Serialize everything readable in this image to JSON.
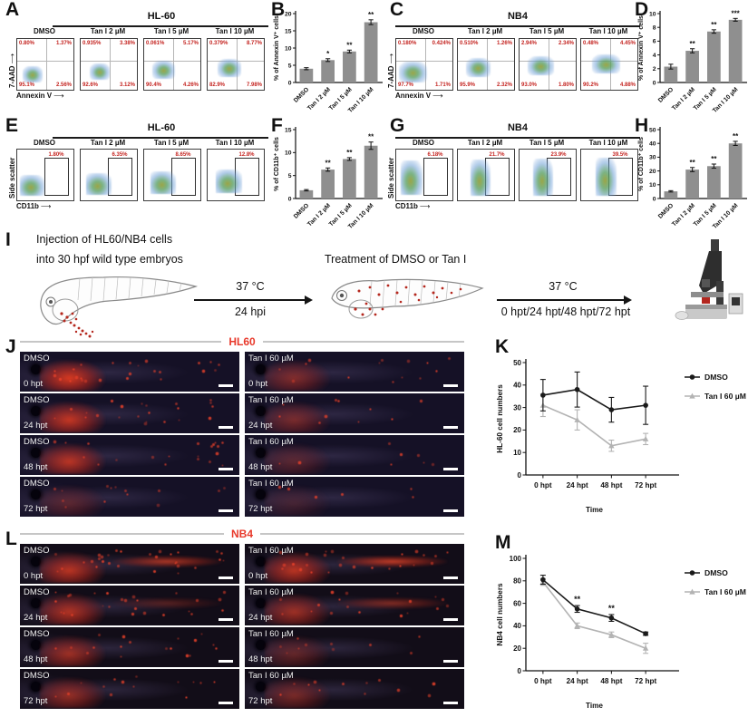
{
  "icons": {
    "arrow_right": "⟶",
    "arrow_up": "↑"
  },
  "colors": {
    "bar": "#8f8f8f",
    "error": "#1a1a1a",
    "red_label": "#c42420",
    "title_red": "#e8392b",
    "dmso_line": "#1a1a1a",
    "tan_line": "#b3b3b3"
  },
  "figure": {
    "panels": {
      "A": {
        "label": "A",
        "title": "HL-60",
        "y_axis": "7-AAD",
        "x_axis": "Annexin V",
        "plots": [
          {
            "condition": "DMSO",
            "ul": "0.80%",
            "ur": "1.37%",
            "ll": "95.1%",
            "lr": "2.56%"
          },
          {
            "condition": "Tan I 2 µM",
            "ul": "0.935%",
            "ur": "3.38%",
            "ll": "92.6%",
            "lr": "3.12%"
          },
          {
            "condition": "Tan I 5 µM",
            "ul": "0.061%",
            "ur": "5.17%",
            "ll": "90.4%",
            "lr": "4.26%"
          },
          {
            "condition": "Tan I 10 µM",
            "ul": "0.379%",
            "ur": "8.77%",
            "ll": "82.9%",
            "lr": "7.98%"
          }
        ]
      },
      "B": {
        "label": "B"
      },
      "C": {
        "label": "C",
        "title": "NB4",
        "y_axis": "7-AAD",
        "x_axis": "Annexin V",
        "plots": [
          {
            "condition": "DMSO",
            "ul": "0.180%",
            "ur": "0.424%",
            "ll": "97.7%",
            "lr": "1.71%"
          },
          {
            "condition": "Tan I 2 µM",
            "ul": "0.510%",
            "ur": "1.26%",
            "ll": "95.9%",
            "lr": "2.32%"
          },
          {
            "condition": "Tan I 5 µM",
            "ul": "2.94%",
            "ur": "2.34%",
            "ll": "93.0%",
            "lr": "1.80%"
          },
          {
            "condition": "Tan I 10 µM",
            "ul": "0.48%",
            "ur": "4.45%",
            "ll": "90.2%",
            "lr": "4.88%"
          }
        ]
      },
      "D": {
        "label": "D"
      },
      "E": {
        "label": "E",
        "title": "HL-60",
        "y_axis": "Side scatter",
        "x_axis": "CD11b",
        "plots": [
          {
            "condition": "DMSO",
            "gate": "1.80%"
          },
          {
            "condition": "Tan I 2 µM",
            "gate": "6.35%"
          },
          {
            "condition": "Tan I 5 µM",
            "gate": "8.65%"
          },
          {
            "condition": "Tan I 10 µM",
            "gate": "12.8%"
          }
        ]
      },
      "F": {
        "label": "F"
      },
      "G": {
        "label": "G",
        "title": "NB4",
        "y_axis": "Side scatter",
        "x_axis": "CD11b",
        "plots": [
          {
            "condition": "DMSO",
            "gate": "6.18%"
          },
          {
            "condition": "Tan I 2 µM",
            "gate": "21.7%"
          },
          {
            "condition": "Tan I 5 µM",
            "gate": "23.9%"
          },
          {
            "condition": "Tan I 10 µM",
            "gate": "39.5%"
          }
        ]
      },
      "H": {
        "label": "H"
      },
      "I": {
        "label": "I",
        "line1": "Injection of HL60/NB4 cells",
        "line2": "into 30 hpf wild type embryos",
        "arrow1_top": "37 °C",
        "arrow1_bottom": "24 hpi",
        "treatment": "Treatment of DMSO or Tan I",
        "arrow2_top": "37 °C",
        "arrow2_bottom": "0 hpt/24 hpt/48 hpt/72 hpt"
      },
      "J": {
        "label": "J",
        "title": "HL60",
        "rows": [
          {
            "left": "DMSO",
            "right": "Tan I 60 µM",
            "time": "0 hpt"
          },
          {
            "left": "DMSO",
            "right": "Tan I 60 µM",
            "time": "24 hpt"
          },
          {
            "left": "DMSO",
            "right": "Tan I 60 µM",
            "time": "48 hpt"
          },
          {
            "left": "DMSO",
            "right": "Tan I 60 µM",
            "time": "72 hpt"
          }
        ]
      },
      "K": {
        "label": "K"
      },
      "L": {
        "label": "L",
        "title": "NB4",
        "rows": [
          {
            "left": "DMSO",
            "right": "Tan I 60 µM",
            "time": "0 hpt"
          },
          {
            "left": "DMSO",
            "right": "Tan I 60 µM",
            "time": "24 hpt"
          },
          {
            "left": "DMSO",
            "right": "Tan I 60 µM",
            "time": "48 hpt"
          },
          {
            "left": "DMSO",
            "right": "Tan I 60 µM",
            "time": "72 hpt"
          }
        ]
      },
      "M": {
        "label": "M"
      }
    }
  },
  "chart_data": [
    {
      "id": "B",
      "type": "bar",
      "title": "",
      "categories": [
        "DMSO",
        "Tan I 2 µM",
        "Tan I 5 µM",
        "Tan I 10 µM"
      ],
      "values": [
        4.0,
        6.5,
        9.0,
        17.5
      ],
      "errors": [
        0.3,
        0.4,
        0.4,
        0.7
      ],
      "significance": [
        "",
        "*",
        "**",
        "**"
      ],
      "xlabel": "",
      "ylabel": "% of Annexin V⁺ cells",
      "ylim": [
        0,
        20
      ],
      "yticks": [
        0,
        5,
        10,
        15,
        20
      ],
      "grid": false
    },
    {
      "id": "D",
      "type": "bar",
      "title": "",
      "categories": [
        "DMSO",
        "Tan I 2 µM",
        "Tan I 5 µM",
        "Tan I 10 µM"
      ],
      "values": [
        2.3,
        4.6,
        7.4,
        9.1
      ],
      "errors": [
        0.35,
        0.3,
        0.25,
        0.2
      ],
      "significance": [
        "",
        "**",
        "**",
        "***"
      ],
      "xlabel": "",
      "ylabel": "% of Annexin V⁺ cells",
      "ylim": [
        0,
        10
      ],
      "yticks": [
        0,
        2,
        4,
        6,
        8,
        10
      ],
      "grid": false
    },
    {
      "id": "F",
      "type": "bar",
      "title": "",
      "categories": [
        "DMSO",
        "Tan I 2 µM",
        "Tan I 5 µM",
        "Tan I 10 µM"
      ],
      "values": [
        1.8,
        6.3,
        8.6,
        11.5
      ],
      "errors": [
        0.15,
        0.35,
        0.3,
        0.8
      ],
      "significance": [
        "",
        "**",
        "**",
        "**"
      ],
      "xlabel": "",
      "ylabel": "% of CD11b⁺ cells",
      "ylim": [
        0,
        15
      ],
      "yticks": [
        0,
        5,
        10,
        15
      ],
      "grid": false
    },
    {
      "id": "H",
      "type": "bar",
      "title": "",
      "categories": [
        "DMSO",
        "Tan I 2 µM",
        "Tan I 5 µM",
        "Tan I 10 µM"
      ],
      "values": [
        5.2,
        21.0,
        23.5,
        40.0
      ],
      "errors": [
        0.5,
        1.5,
        1.5,
        1.5
      ],
      "significance": [
        "",
        "**",
        "**",
        "**"
      ],
      "xlabel": "",
      "ylabel": "% of CD11b⁺ cells",
      "ylim": [
        0,
        50
      ],
      "yticks": [
        0,
        10,
        20,
        30,
        40,
        50
      ],
      "grid": false
    },
    {
      "id": "K",
      "type": "line",
      "title": "",
      "categories": [
        "0 hpt",
        "24 hpt",
        "48 hpt",
        "72 hpt"
      ],
      "series": [
        {
          "name": "DMSO",
          "marker": "circle",
          "color": "#1a1a1a",
          "values": [
            35.5,
            38.0,
            29.0,
            31.0
          ],
          "errors": [
            7.0,
            7.8,
            5.5,
            8.5
          ]
        },
        {
          "name": "Tan I 60 µM",
          "marker": "triangle",
          "color": "#b3b3b3",
          "values": [
            31.0,
            24.5,
            13.0,
            16.0
          ],
          "errors": [
            5.0,
            4.5,
            2.5,
            2.5
          ]
        }
      ],
      "significance": [],
      "xlabel": "Time",
      "ylabel": "HL-60 cell numbers",
      "ylim": [
        0,
        50
      ],
      "yticks": [
        0,
        10,
        20,
        30,
        40,
        50
      ],
      "legend_position": "right",
      "grid": false
    },
    {
      "id": "M",
      "type": "line",
      "title": "",
      "categories": [
        "0 hpt",
        "24 hpt",
        "48 hpt",
        "72 hpt"
      ],
      "series": [
        {
          "name": "DMSO",
          "marker": "circle",
          "color": "#1a1a1a",
          "values": [
            81.0,
            55.0,
            47.0,
            33.0
          ],
          "errors": [
            4.0,
            3.0,
            3.0,
            1.5
          ]
        },
        {
          "name": "Tan I 60 µM",
          "marker": "triangle",
          "color": "#b3b3b3",
          "values": [
            79.0,
            40.0,
            32.0,
            20.0
          ],
          "errors": [
            3.0,
            2.5,
            2.5,
            4.5
          ]
        }
      ],
      "significance": [
        {
          "x": 1,
          "label": "**"
        },
        {
          "x": 2,
          "label": "**"
        }
      ],
      "xlabel": "Time",
      "ylabel": "NB4 cell numbers",
      "ylim": [
        0,
        100
      ],
      "yticks": [
        0,
        20,
        40,
        60,
        80,
        100
      ],
      "legend_position": "right",
      "grid": false
    }
  ]
}
